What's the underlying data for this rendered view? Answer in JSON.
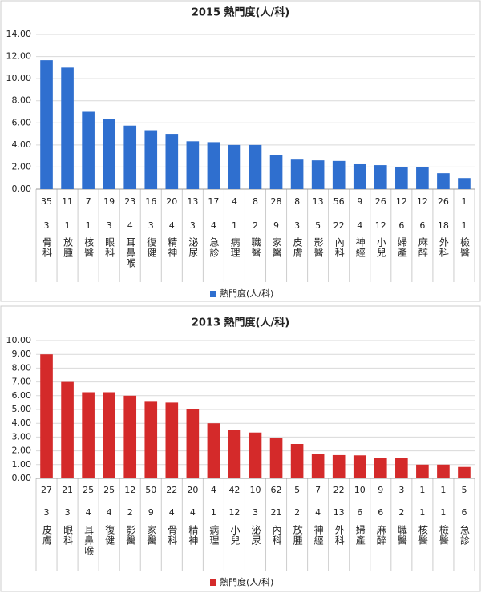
{
  "chart_data": [
    {
      "type": "bar",
      "title": "2015 熱門度(人/科)",
      "categories": [
        "骨科",
        "放腫",
        "核醫",
        "眼科",
        "耳鼻喉",
        "復健",
        "精神",
        "泌尿",
        "急診",
        "病理",
        "職醫",
        "家醫",
        "皮膚",
        "影醫",
        "內科",
        "神經",
        "小兒",
        "婦產",
        "麻醉",
        "外科",
        "檢醫"
      ],
      "series": [
        {
          "name": "熱門度(人/科)",
          "color": "#2f6fcf",
          "values": [
            11.67,
            11,
            7,
            6.33,
            5.75,
            5.33,
            5,
            4.33,
            4.25,
            4,
            4,
            3.11,
            2.67,
            2.6,
            2.55,
            2.25,
            2.17,
            2,
            2,
            1.44,
            1
          ]
        }
      ],
      "table_rows": [
        [
          35,
          11,
          7,
          19,
          23,
          16,
          20,
          13,
          17,
          4,
          8,
          28,
          8,
          13,
          56,
          9,
          26,
          12,
          12,
          26,
          1
        ],
        [
          3,
          1,
          1,
          3,
          4,
          3,
          4,
          3,
          4,
          1,
          2,
          9,
          3,
          5,
          22,
          4,
          12,
          6,
          6,
          18,
          1
        ]
      ],
      "ylim": [
        0,
        14
      ],
      "yticks": [
        {
          "value": 0,
          "label": "0.00"
        },
        {
          "value": 2,
          "label": "2.00"
        },
        {
          "value": 4,
          "label": "4.00"
        },
        {
          "value": 6,
          "label": "6.00"
        },
        {
          "value": 8,
          "label": "8.00"
        },
        {
          "value": 10,
          "label": "10.00"
        },
        {
          "value": 12,
          "label": "12.00"
        },
        {
          "value": 14,
          "label": "14.00"
        }
      ],
      "grid": true
    },
    {
      "type": "bar",
      "title": "2013 熱門度(人/科)",
      "categories": [
        "皮膚",
        "眼科",
        "耳鼻喉",
        "復健",
        "影醫",
        "家醫",
        "骨科",
        "精神",
        "病理",
        "小兒",
        "泌尿",
        "內科",
        "放腫",
        "神經",
        "外科",
        "婦產",
        "麻醉",
        "職醫",
        "核醫",
        "檢醫",
        "急診"
      ],
      "series": [
        {
          "name": "熱門度(人/科)",
          "color": "#d42a2a",
          "values": [
            9,
            7,
            6.25,
            6.25,
            6,
            5.56,
            5.5,
            5,
            4,
            3.5,
            3.33,
            2.95,
            2.5,
            1.75,
            1.69,
            1.67,
            1.5,
            1.5,
            1,
            1,
            0.83
          ]
        }
      ],
      "table_rows": [
        [
          27,
          21,
          25,
          25,
          12,
          50,
          22,
          20,
          4,
          42,
          10,
          62,
          5,
          7,
          22,
          10,
          9,
          3,
          1,
          1,
          5
        ],
        [
          3,
          3,
          4,
          4,
          2,
          9,
          4,
          4,
          1,
          12,
          3,
          21,
          2,
          4,
          13,
          6,
          6,
          2,
          1,
          1,
          6
        ]
      ],
      "ylim": [
        0,
        10
      ],
      "yticks": [
        {
          "value": 0,
          "label": "0.00"
        },
        {
          "value": 1,
          "label": "1.00"
        },
        {
          "value": 2,
          "label": "2.00"
        },
        {
          "value": 3,
          "label": "3.00"
        },
        {
          "value": 4,
          "label": "4.00"
        },
        {
          "value": 5,
          "label": "5.00"
        },
        {
          "value": 6,
          "label": "6.00"
        },
        {
          "value": 7,
          "label": "7.00"
        },
        {
          "value": 8,
          "label": "8.00"
        },
        {
          "value": 9,
          "label": "9.00"
        },
        {
          "value": 10,
          "label": "10.00"
        }
      ],
      "grid": true
    }
  ]
}
